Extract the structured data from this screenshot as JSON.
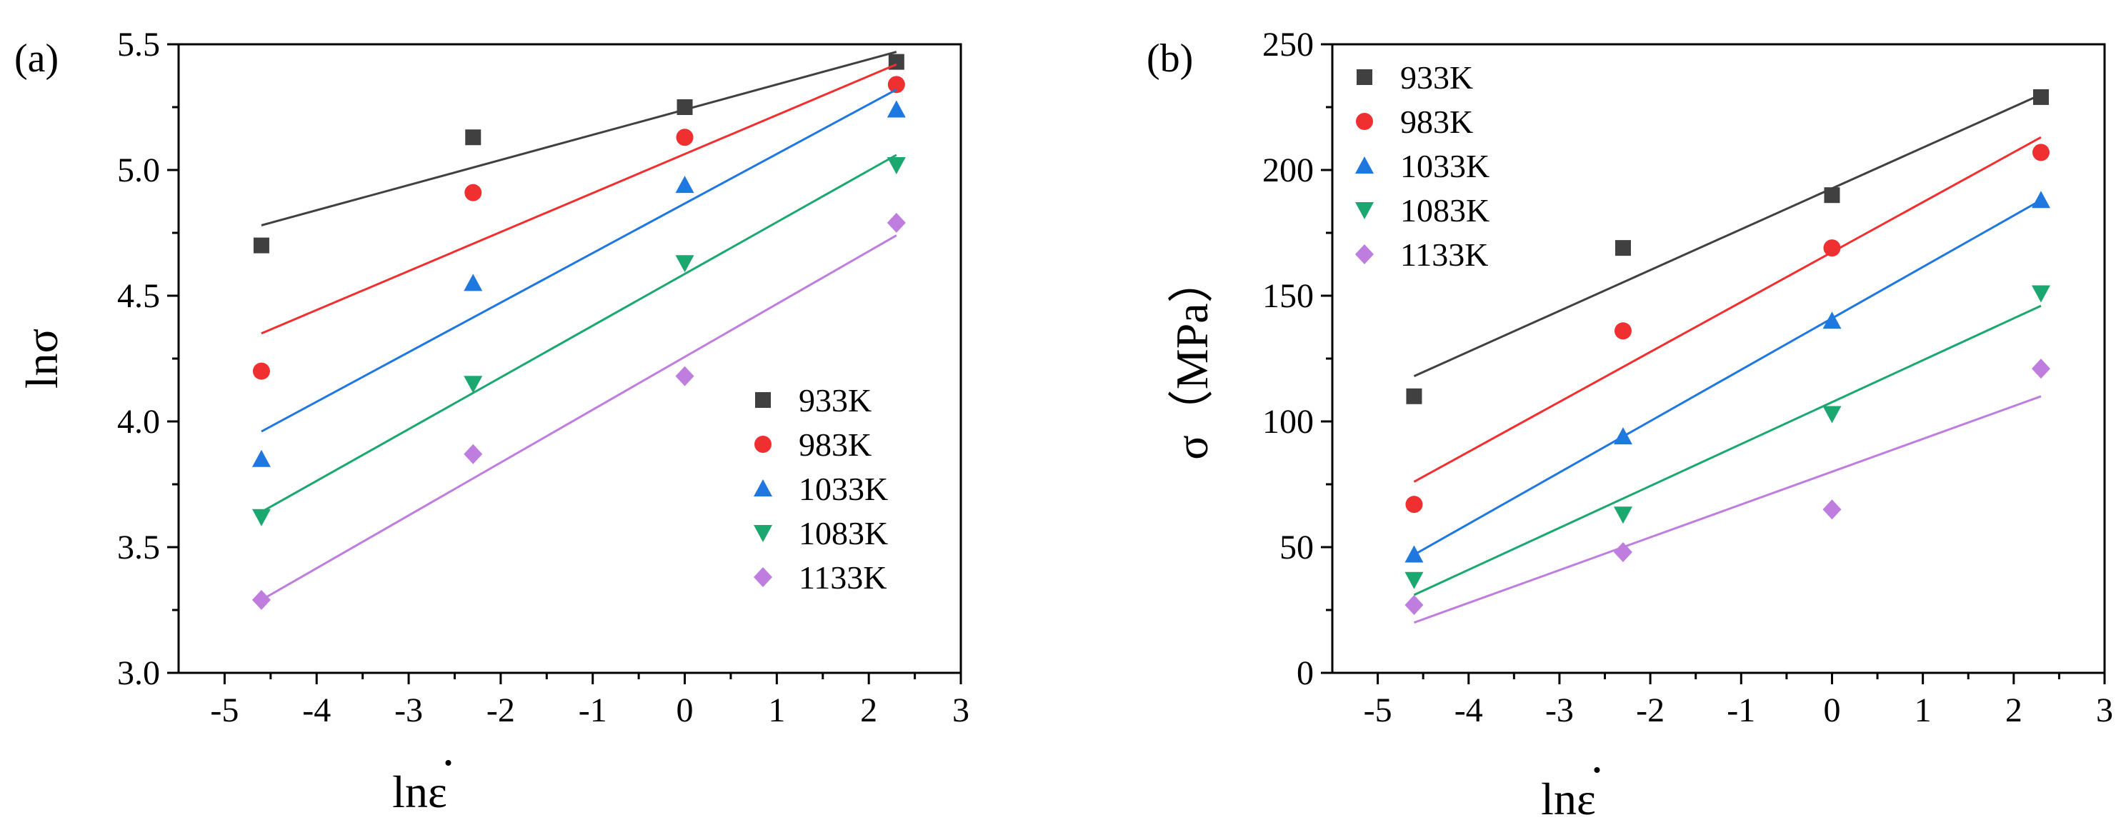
{
  "chart_data": [
    {
      "type": "scatter",
      "panel_label": "(a)",
      "xlabel": "lnε",
      "ylabel": "lnσ",
      "xlim": [
        -5.5,
        3
      ],
      "ylim": [
        3.0,
        5.5
      ],
      "x_ticks": [
        -5,
        -4,
        -3,
        -2,
        -1,
        0,
        1,
        2,
        3
      ],
      "y_ticks": [
        3.0,
        3.5,
        4.0,
        4.5,
        5.0,
        5.5
      ],
      "y_tick_labels": [
        "3.0",
        "3.5",
        "4.0",
        "4.5",
        "5.0",
        "5.5"
      ],
      "legend_position": "bottom-right",
      "grid": false,
      "x": [
        -4.6,
        -2.3,
        0,
        2.3
      ],
      "series": [
        {
          "name": "933K",
          "marker": "square",
          "color": "#404040",
          "values": [
            4.7,
            5.13,
            5.25,
            5.43
          ],
          "fit": [
            4.78,
            5.47
          ]
        },
        {
          "name": "983K",
          "marker": "circle",
          "color": "#f03030",
          "values": [
            4.2,
            4.91,
            5.13,
            5.34
          ],
          "fit": [
            4.35,
            5.42
          ]
        },
        {
          "name": "1033K",
          "marker": "triangle-up",
          "color": "#1f78e0",
          "values": [
            3.85,
            4.55,
            4.94,
            5.24
          ],
          "fit": [
            3.96,
            5.32
          ]
        },
        {
          "name": "1083K",
          "marker": "triangle-down",
          "color": "#1aa870",
          "values": [
            3.62,
            4.15,
            4.63,
            5.02
          ],
          "fit": [
            3.64,
            5.06
          ]
        },
        {
          "name": "1133K",
          "marker": "diamond",
          "color": "#c07de0",
          "values": [
            3.29,
            3.87,
            4.18,
            4.79
          ],
          "fit": [
            3.29,
            4.74
          ]
        }
      ]
    },
    {
      "type": "scatter",
      "panel_label": "(b)",
      "xlabel": "lnε",
      "ylabel": "σ（MPa）",
      "xlim": [
        -5.5,
        3
      ],
      "ylim": [
        0,
        250
      ],
      "x_ticks": [
        -5,
        -4,
        -3,
        -2,
        -1,
        0,
        1,
        2,
        3
      ],
      "y_ticks": [
        0,
        50,
        100,
        150,
        200,
        250
      ],
      "y_tick_labels": [
        "0",
        "50",
        "100",
        "150",
        "200",
        "250"
      ],
      "legend_position": "top-left",
      "grid": false,
      "x": [
        -4.6,
        -2.3,
        0,
        2.3
      ],
      "series": [
        {
          "name": "933K",
          "marker": "square",
          "color": "#404040",
          "values": [
            110,
            169,
            190,
            229
          ],
          "fit": [
            118,
            230
          ]
        },
        {
          "name": "983K",
          "marker": "circle",
          "color": "#f03030",
          "values": [
            67,
            136,
            169,
            207
          ],
          "fit": [
            76,
            213
          ]
        },
        {
          "name": "1033K",
          "marker": "triangle-up",
          "color": "#1f78e0",
          "values": [
            47,
            94,
            140,
            188
          ],
          "fit": [
            47,
            188
          ]
        },
        {
          "name": "1083K",
          "marker": "triangle-down",
          "color": "#1aa870",
          "values": [
            37,
            63,
            103,
            151
          ],
          "fit": [
            31,
            146
          ]
        },
        {
          "name": "1133K",
          "marker": "diamond",
          "color": "#c07de0",
          "values": [
            27,
            48,
            65,
            121
          ],
          "fit": [
            20,
            110
          ]
        }
      ]
    }
  ]
}
